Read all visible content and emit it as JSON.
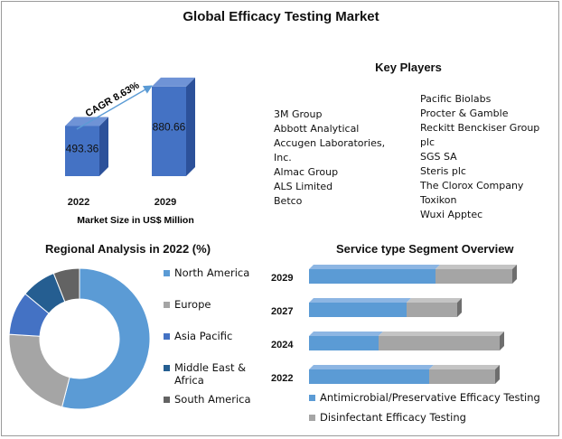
{
  "title": "Global Efficacy Testing Market",
  "market": {
    "cagr_label": "CAGR 8.63%",
    "caption": "Market Size in US$ Million",
    "bars": [
      {
        "year": "2022",
        "value": 493.36,
        "label": "493.36"
      },
      {
        "year": "2029",
        "value": 880.66,
        "label": "880.66"
      }
    ]
  },
  "key_players": {
    "title": "Key Players",
    "col1": [
      "3M Group",
      "Abbott Analytical",
      "Accugen Laboratories,",
      "Inc.",
      "Almac Group",
      "ALS Limited",
      "Betco"
    ],
    "col2": [
      "Pacific Biolabs",
      "Procter & Gamble",
      "Reckitt Benckiser Group",
      "plc",
      "SGS SA",
      "Steris plc",
      "The Clorox Company",
      "Toxikon",
      "Wuxi Apptec"
    ]
  },
  "regional": {
    "title": "Regional Analysis in 2022 (%)",
    "legend": [
      {
        "label": "North America",
        "color": "#5b9bd5"
      },
      {
        "label": "Europe",
        "color": "#a5a5a5"
      },
      {
        "label": "Asia Pacific",
        "color": "#4472c4"
      },
      {
        "label": "Middle East &",
        "label2": "Africa",
        "color": "#255e91"
      },
      {
        "label": "South America",
        "color": "#636363"
      }
    ]
  },
  "service": {
    "title": "Service type Segment Overview",
    "legend": [
      {
        "label": "Antimicrobial/Preservative Efficacy Testing",
        "color": "#5b9bd5"
      },
      {
        "label": "Disinfectant Efficacy Testing",
        "color": "#a5a5a5"
      }
    ]
  },
  "chart_data": [
    {
      "type": "bar",
      "title": "Global Efficacy Testing Market",
      "categories": [
        "2022",
        "2029"
      ],
      "values": [
        493.36,
        880.66
      ],
      "xlabel": "Market Size in US$ Million",
      "annotation": "CAGR 8.63%",
      "color": "#4472c4"
    },
    {
      "type": "pie",
      "title": "Regional Analysis in 2022 (%)",
      "donut": true,
      "labels": [
        "North America",
        "Europe",
        "Asia Pacific",
        "Middle East & Africa",
        "South America"
      ],
      "values": [
        54,
        22,
        10,
        8,
        6
      ],
      "colors": [
        "#5b9bd5",
        "#a5a5a5",
        "#4472c4",
        "#255e91",
        "#636363"
      ]
    },
    {
      "type": "bar",
      "orientation": "horizontal",
      "stacked": true,
      "title": "Service type Segment Overview",
      "categories": [
        "2029",
        "2027",
        "2024",
        "2022"
      ],
      "series": [
        {
          "name": "Antimicrobial/Preservative Efficacy Testing",
          "values": [
            140,
            108,
            77,
            133
          ],
          "color": "#5b9bd5"
        },
        {
          "name": "Disinfectant Efficacy Testing",
          "values": [
            85,
            56,
            134,
            73
          ],
          "color": "#a5a5a5"
        }
      ]
    }
  ]
}
